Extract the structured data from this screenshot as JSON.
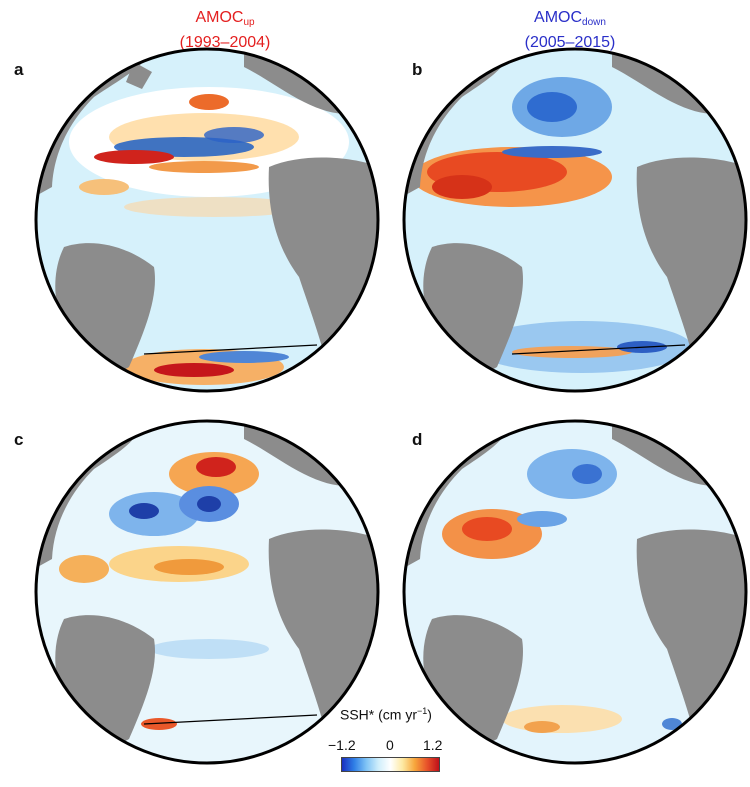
{
  "columns": {
    "up": {
      "main": "AMOC",
      "sub": "up",
      "period": "(1993–2004)"
    },
    "down": {
      "main": "AMOC",
      "sub": "down",
      "period": "(2005–2015)"
    }
  },
  "panels": [
    {
      "label": "a",
      "pattern": "amoc-up-observed",
      "section_line": true
    },
    {
      "label": "b",
      "pattern": "amoc-down-observed",
      "section_line": true
    },
    {
      "label": "c",
      "pattern": "amoc-up-model",
      "section_line": true
    },
    {
      "label": "d",
      "pattern": "amoc-down-model",
      "section_line": false
    }
  ],
  "colorbar": {
    "title_main": "SSH* (cm yr",
    "title_sup": "−1",
    "title_end": ")",
    "min_label": "−1.2",
    "mid_label": "0",
    "max_label": "1.2",
    "colors": [
      "#1a2fbf",
      "#2f7fe6",
      "#7fc3f5",
      "#cfeefb",
      "#ffffff",
      "#fde9a2",
      "#f7a63c",
      "#e8532a",
      "#c0101a"
    ]
  },
  "colors": {
    "land": "#8c8c8c",
    "ocean_base": "#d6f1fb",
    "globe_outline": "#000000"
  }
}
